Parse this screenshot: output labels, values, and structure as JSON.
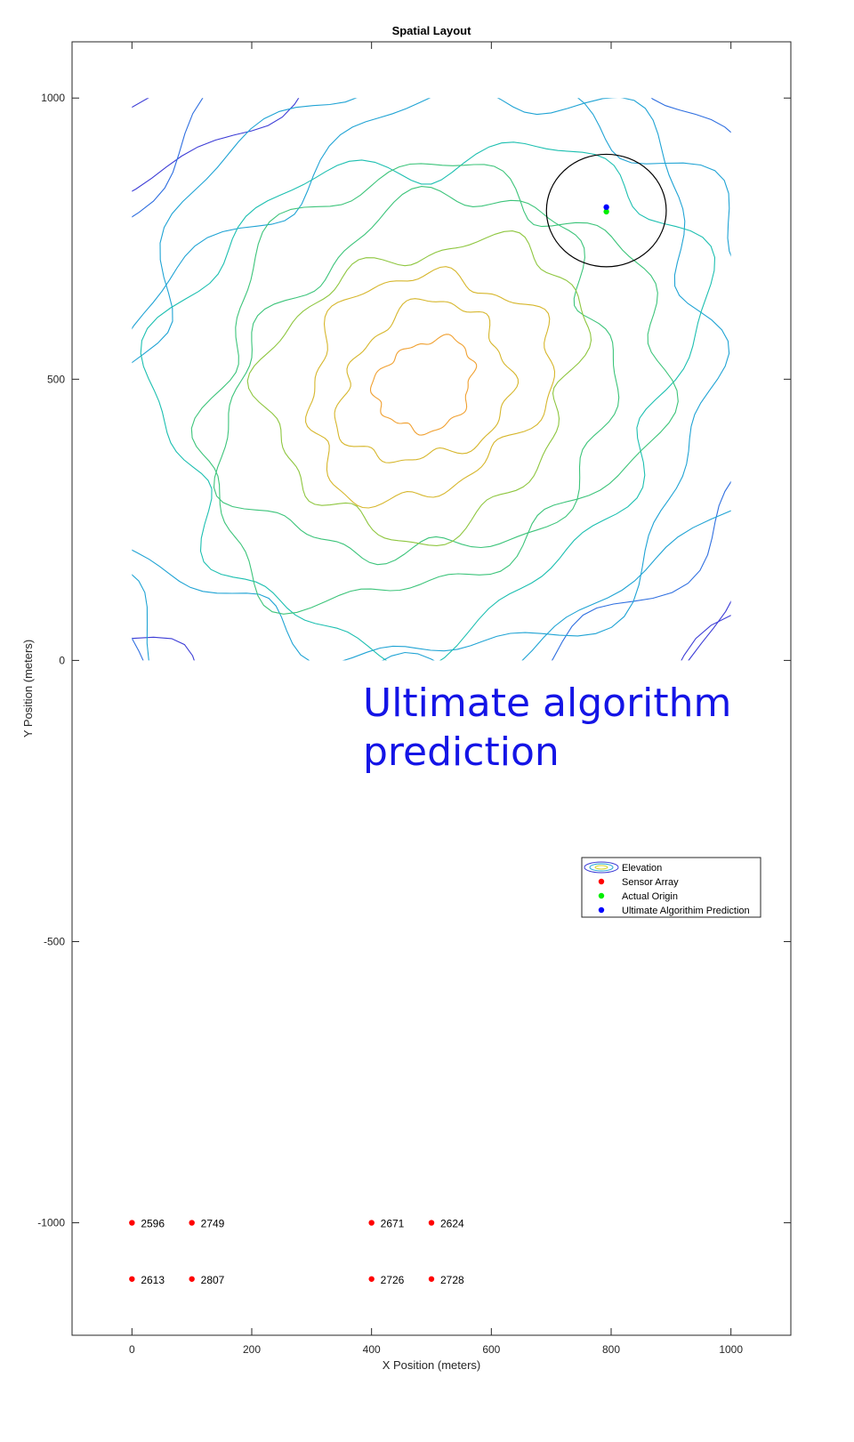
{
  "chart_data": {
    "type": "scatter",
    "title": "Spatial Layout",
    "xlabel": "X Position (meters)",
    "ylabel": "Y Position (meters)",
    "xlim": [
      -100,
      1100
    ],
    "ylim": [
      -1200,
      1100
    ],
    "xticks": [
      0,
      200,
      400,
      600,
      800,
      1000
    ],
    "yticks": [
      -1000,
      -500,
      0,
      500,
      1000
    ],
    "xtick_labels": [
      "0",
      "200",
      "400",
      "600",
      "800",
      "1000"
    ],
    "ytick_labels": [
      "-1000",
      "-500",
      "0",
      "500",
      "1000"
    ],
    "grid": false,
    "legend_position": "east, below annotation",
    "annotation": {
      "lines": [
        "Ultimate algorithm",
        "prediction"
      ],
      "color": "#1414e6"
    },
    "elevation_contours": {
      "x_range": [
        0,
        1000
      ],
      "y_range": [
        0,
        1000
      ],
      "peak": [
        490,
        490
      ],
      "colormap": [
        "#3c3cd6",
        "#2f6fe0",
        "#1fa3d4",
        "#1cbfb0",
        "#3cc47a",
        "#8ec63f",
        "#d6b62b",
        "#f0a030"
      ]
    },
    "series": [
      {
        "name": "Elevation",
        "kind": "contour",
        "color": "#1fa3d4"
      },
      {
        "name": "Sensor Array",
        "color": "#ff0000",
        "points": [
          {
            "x": 0,
            "y": -1000,
            "label": "2596"
          },
          {
            "x": 100,
            "y": -1000,
            "label": "2749"
          },
          {
            "x": 400,
            "y": -1000,
            "label": "2671"
          },
          {
            "x": 500,
            "y": -1000,
            "label": "2624"
          },
          {
            "x": 0,
            "y": -1100,
            "label": "2613"
          },
          {
            "x": 100,
            "y": -1100,
            "label": "2807"
          },
          {
            "x": 400,
            "y": -1100,
            "label": "2726"
          },
          {
            "x": 500,
            "y": -1100,
            "label": "2728"
          }
        ]
      },
      {
        "name": "Actual Origin",
        "color": "#00ee00",
        "points": [
          {
            "x": 792,
            "y": 798
          }
        ]
      },
      {
        "name": "Ultimate Algorithim Prediction",
        "color": "#0000ff",
        "points": [
          {
            "x": 792,
            "y": 806
          }
        ]
      }
    ],
    "prediction_circle": {
      "cx": 792,
      "cy": 800,
      "r": 100,
      "color": "#000000"
    }
  }
}
